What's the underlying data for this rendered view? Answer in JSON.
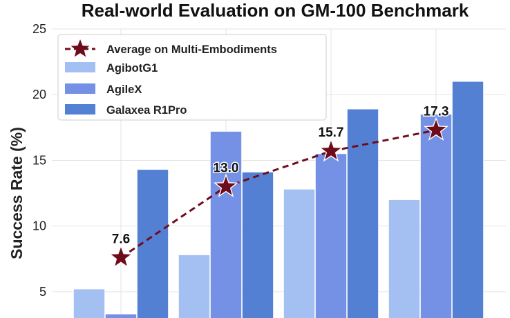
{
  "chart_data": {
    "type": "bar",
    "title": "Real-world Evaluation on GM-100 Benchmark",
    "xlabel": "",
    "ylabel": "Success Rate (%)",
    "ylim": [
      3,
      25
    ],
    "yticks": [
      5,
      10,
      15,
      20,
      25
    ],
    "grid": true,
    "legend_position": "top-left",
    "categories": [
      "",
      "",
      "",
      ""
    ],
    "series": [
      {
        "name": "AgibotG1",
        "values": [
          5.2,
          7.8,
          12.8,
          12.0
        ],
        "color": "#a4bff2"
      },
      {
        "name": "AgileX",
        "values": [
          3.3,
          17.2,
          15.5,
          18.5
        ],
        "color": "#7491e6"
      },
      {
        "name": "Galaxea R1Pro",
        "values": [
          14.3,
          14.1,
          18.9,
          21.0
        ],
        "color": "#5480d3"
      }
    ],
    "average": {
      "name": "Average on Multi-Embodiments",
      "values": [
        7.6,
        13.0,
        15.7,
        17.3
      ],
      "labels": [
        "7.6",
        "13.0",
        "15.7",
        "17.3"
      ],
      "color": "#6f0c1c"
    }
  }
}
